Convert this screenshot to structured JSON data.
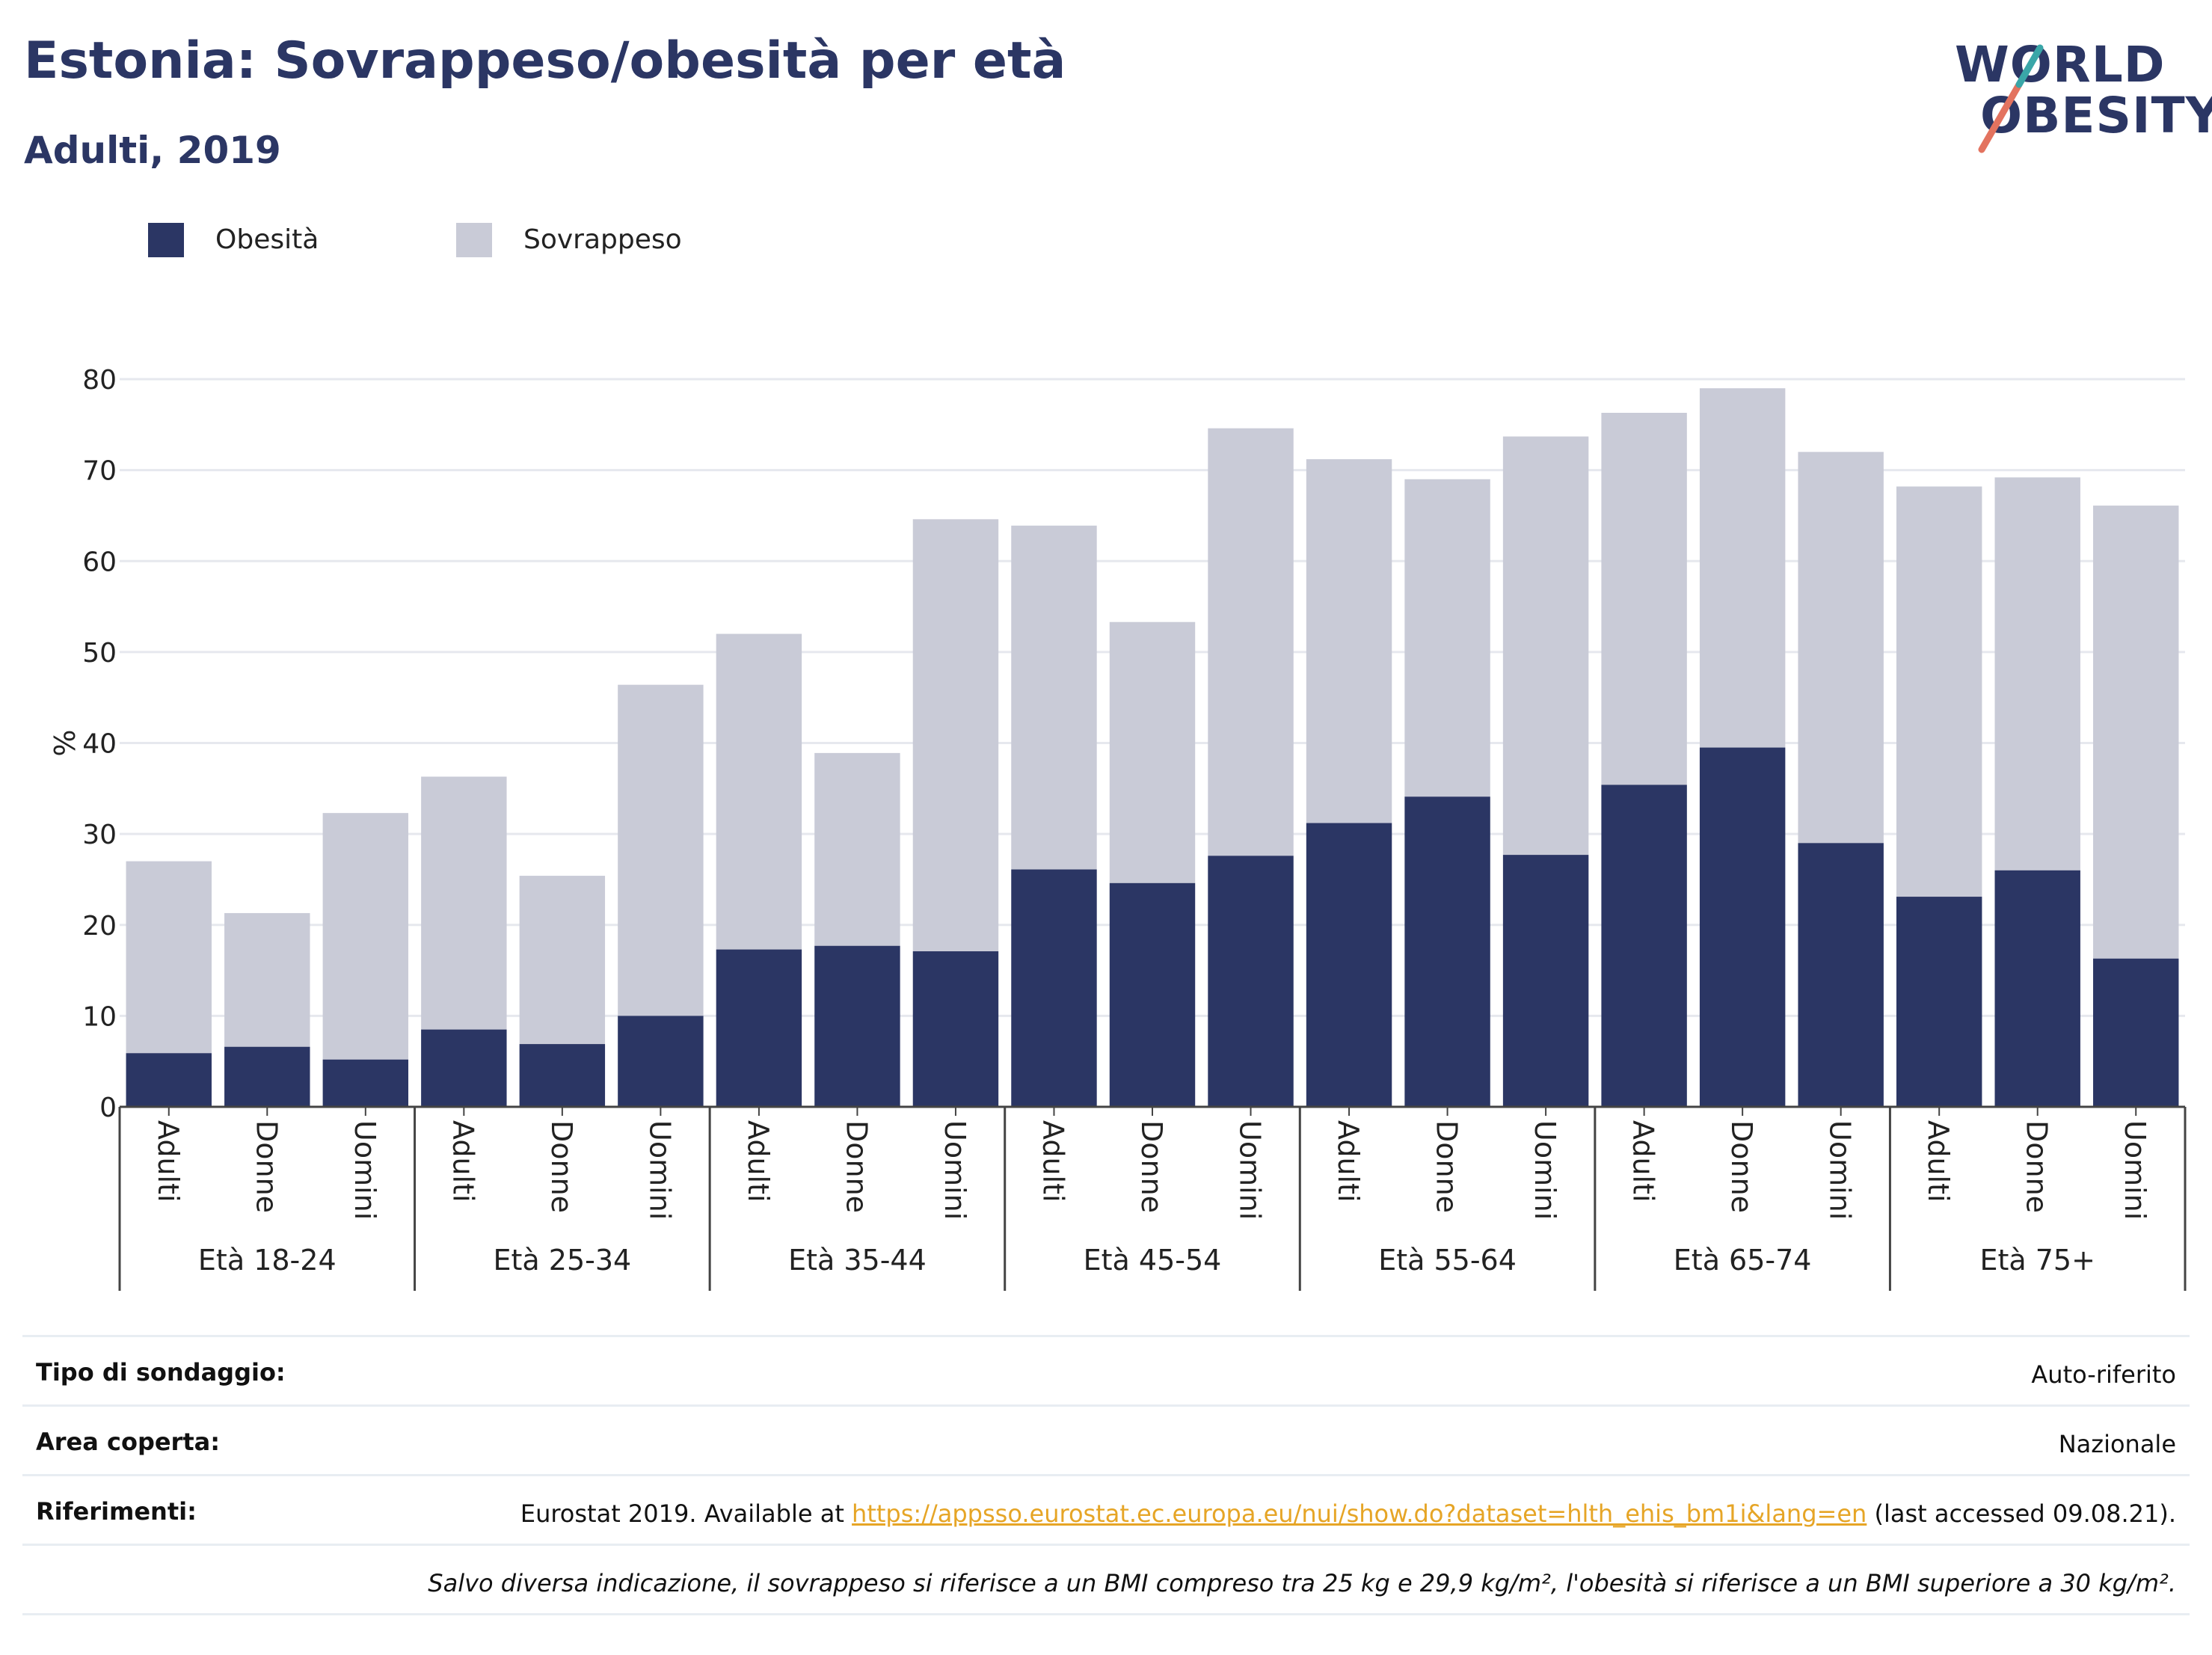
{
  "header": {
    "title": "Estonia: Sovrappeso/obesità per età",
    "subtitle": "Adulti, 2019"
  },
  "logo": {
    "line1": "WORLD",
    "line2": "OBESITY"
  },
  "colors": {
    "obesity": "#2b3664",
    "overweight": "#c9cbd7",
    "accent": "#e6a526",
    "logo_teal": "#3aa6a8",
    "logo_coral": "#e3735f"
  },
  "chart_data": {
    "type": "bar",
    "stacked": true,
    "ylabel": "%",
    "ylim": [
      0,
      80
    ],
    "yticks": [
      0,
      10,
      20,
      30,
      40,
      50,
      60,
      70,
      80
    ],
    "grid": true,
    "legend_position": "top-left",
    "groups": [
      "Età 18-24",
      "Età 25-34",
      "Età 35-44",
      "Età 45-54",
      "Età 55-64",
      "Età 65-74",
      "Età 75+"
    ],
    "subcategories": [
      "Adulti",
      "Donne",
      "Uomini"
    ],
    "series": [
      {
        "name": "Obesità",
        "values": [
          [
            5.9,
            6.6,
            5.2
          ],
          [
            8.5,
            6.9,
            10.0
          ],
          [
            17.3,
            17.7,
            17.1
          ],
          [
            26.1,
            24.6,
            27.6
          ],
          [
            31.2,
            34.1,
            27.7
          ],
          [
            35.4,
            39.5,
            29.0
          ],
          [
            23.1,
            26.0,
            16.3
          ]
        ]
      },
      {
        "name": "Sovrappeso",
        "values": [
          [
            21.1,
            14.7,
            27.1
          ],
          [
            27.8,
            18.5,
            36.4
          ],
          [
            34.7,
            21.2,
            47.5
          ],
          [
            37.8,
            28.7,
            47.0
          ],
          [
            40.0,
            34.9,
            46.0
          ],
          [
            40.9,
            39.5,
            43.0
          ],
          [
            45.1,
            43.2,
            49.8
          ]
        ]
      }
    ]
  },
  "info": {
    "survey_label": "Tipo di sondaggio:",
    "survey_value": "Auto-riferito",
    "area_label": "Area coperta:",
    "area_value": "Nazionale",
    "refs_label": "Riferimenti:",
    "refs_prefix": "Eurostat 2019. Available at ",
    "refs_link": "https://appsso.eurostat.ec.europa.eu/nui/show.do?dataset=hlth_ehis_bm1i&lang=en",
    "refs_suffix": " (last accessed 09.08.21).",
    "note": "Salvo diversa indicazione, il sovrappeso si riferisce a un BMI compreso tra 25 kg e 29,9 kg/m², l'obesità si riferisce a un BMI superiore a 30 kg/m²."
  }
}
